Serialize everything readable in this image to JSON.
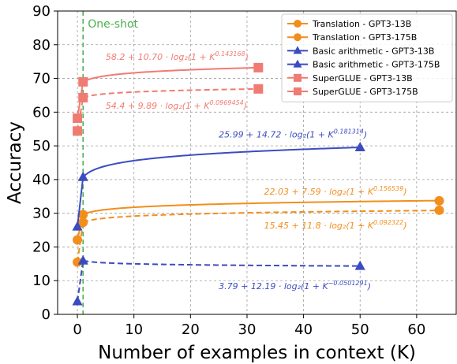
{
  "chart_data": {
    "type": "line",
    "xlabel": "Number of examples in context (K)",
    "ylabel": "Accuracy",
    "xlim": [
      -3.5,
      67
    ],
    "ylim": [
      0,
      90
    ],
    "xticks": [
      0,
      10,
      20,
      30,
      40,
      50,
      60
    ],
    "yticks": [
      0,
      10,
      20,
      30,
      40,
      50,
      60,
      70,
      80,
      90
    ],
    "grid": true,
    "legend_position": "top-right",
    "one_shot": {
      "x": 1,
      "label": "One-shot",
      "color": "#4caf50"
    },
    "series": [
      {
        "name": "Translation - GPT3-13B",
        "color": "#f28e1c",
        "marker": "circle",
        "linestyle": "dashed",
        "points": [
          [
            0,
            15.5
          ],
          [
            1,
            27.3
          ],
          [
            64,
            30.9
          ]
        ],
        "fit": {
          "a": 15.45,
          "b": 11.8,
          "c": 0.092322
        }
      },
      {
        "name": "Translation - GPT3-175B",
        "color": "#f28e1c",
        "marker": "circle",
        "linestyle": "solid",
        "points": [
          [
            0,
            22.1
          ],
          [
            1,
            29.6
          ],
          [
            64,
            33.7
          ]
        ],
        "fit": {
          "a": 22.03,
          "b": 7.59,
          "c": 0.156539
        }
      },
      {
        "name": "Basic arithmetic - GPT3-13B",
        "color": "#3b4cc0",
        "marker": "triangle",
        "linestyle": "dashed",
        "points": [
          [
            0,
            3.8
          ],
          [
            1,
            15.9
          ],
          [
            50,
            14.3
          ]
        ],
        "fit": {
          "a": 3.79,
          "b": 12.19,
          "c": -0.0501291
        }
      },
      {
        "name": "Basic arithmetic - GPT3-175B",
        "color": "#3b4cc0",
        "marker": "triangle",
        "linestyle": "solid",
        "points": [
          [
            0,
            26.0
          ],
          [
            1,
            40.7
          ],
          [
            50,
            49.5
          ]
        ],
        "fit": {
          "a": 25.99,
          "b": 14.72,
          "c": 0.181314
        }
      },
      {
        "name": "SuperGLUE - GPT3-13B",
        "color": "#f07b72",
        "marker": "square",
        "linestyle": "dashed",
        "points": [
          [
            0,
            54.4
          ],
          [
            1,
            64.3
          ],
          [
            32,
            66.9
          ]
        ],
        "fit": {
          "a": 54.4,
          "b": 9.89,
          "c": 0.0969454
        }
      },
      {
        "name": "SuperGLUE - GPT3-175B",
        "color": "#f07b72",
        "marker": "square",
        "linestyle": "solid",
        "points": [
          [
            0,
            58.2
          ],
          [
            1,
            69.0
          ],
          [
            32,
            73.2
          ]
        ],
        "fit": {
          "a": 58.2,
          "b": 10.7,
          "c": 0.143168
        }
      }
    ],
    "annotations": [
      {
        "base": "58.2 + 10.70 · log₂(1 + K",
        "sup": "0.143168",
        "tail": ")",
        "color": "#f07b72",
        "at": [
          5,
          75.5
        ]
      },
      {
        "base": "54.4 + 9.89 · log₂(1 + K",
        "sup": "0.0969454",
        "tail": ")",
        "color": "#f07b72",
        "at": [
          5,
          61
        ]
      },
      {
        "base": "25.99 + 14.72 · log₂(1 + K",
        "sup": "0.181314",
        "tail": ")",
        "color": "#3b4cc0",
        "at": [
          25,
          52.5
        ]
      },
      {
        "base": "22.03 + 7.59 · log₂(1 + K",
        "sup": "0.156539",
        "tail": ")",
        "color": "#f28e1c",
        "at": [
          33,
          35.5
        ]
      },
      {
        "base": "15.45 + 11.8 · log₂(1 + K",
        "sup": "0.092322",
        "tail": ")",
        "color": "#f28e1c",
        "at": [
          33,
          25.5
        ]
      },
      {
        "base": "3.79 + 12.19 · log₂(1 + K",
        "sup": "−0.0501291",
        "tail": ")",
        "color": "#3b4cc0",
        "at": [
          25,
          7.5
        ]
      }
    ]
  }
}
